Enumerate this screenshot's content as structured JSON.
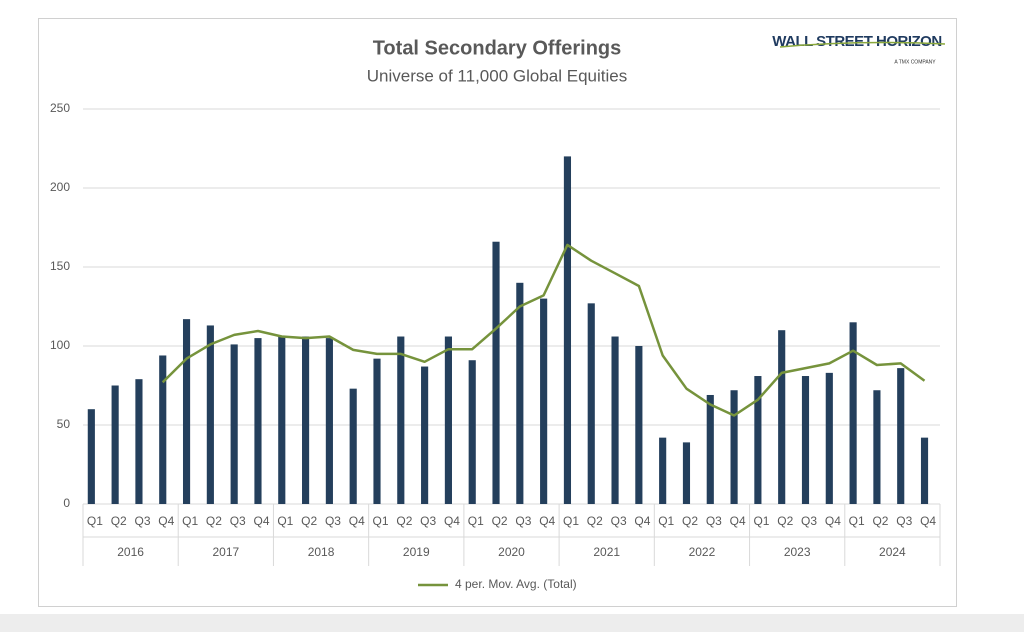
{
  "chart_data": {
    "type": "bar-line",
    "title": "Total Secondary Offerings",
    "subtitle": "Universe of 11,000 Global Equities",
    "categories": [
      "Q1",
      "Q2",
      "Q3",
      "Q4",
      "Q1",
      "Q2",
      "Q3",
      "Q4",
      "Q1",
      "Q2",
      "Q3",
      "Q4",
      "Q1",
      "Q2",
      "Q3",
      "Q4",
      "Q1",
      "Q2",
      "Q3",
      "Q4",
      "Q1",
      "Q2",
      "Q3",
      "Q4",
      "Q1",
      "Q2",
      "Q3",
      "Q4",
      "Q1",
      "Q2",
      "Q3",
      "Q4",
      "Q1",
      "Q2",
      "Q3",
      "Q4"
    ],
    "groups": [
      "2016",
      "2017",
      "2018",
      "2019",
      "2020",
      "2021",
      "2022",
      "2023",
      "2024"
    ],
    "series": [
      {
        "type": "bar",
        "color": "#243f5c",
        "values": [
          60,
          75,
          79,
          94,
          117,
          113,
          101,
          105,
          106,
          106,
          105,
          73,
          92,
          106,
          87,
          106,
          91,
          166,
          140,
          130,
          220,
          127,
          106,
          100,
          42,
          39,
          69,
          72,
          81,
          110,
          81,
          83,
          115,
          72,
          86,
          42
        ]
      },
      {
        "type": "line",
        "name": "4 per. Mov. Avg. (Total)",
        "color": "#76933c",
        "values": [
          null,
          null,
          null,
          77,
          92,
          101,
          107,
          109.5,
          106,
          105,
          106,
          97.5,
          95,
          95,
          90,
          98,
          98,
          111,
          125,
          132,
          164,
          154,
          146,
          138,
          94,
          73,
          63,
          56,
          66,
          83,
          86,
          89,
          97,
          88,
          89,
          78
        ]
      }
    ],
    "ylim": [
      0,
      250
    ],
    "yticks": [
      0,
      50,
      100,
      150,
      200,
      250
    ],
    "grid": true
  },
  "logo": {
    "name": "WALL STREET HORIZON",
    "tagline": "A TMX COMPANY"
  }
}
